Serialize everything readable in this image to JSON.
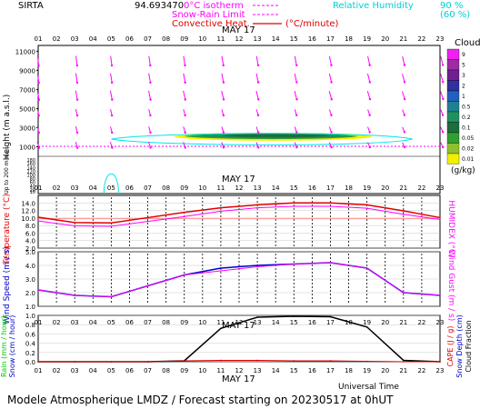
{
  "header": {
    "station": "SIRTA",
    "station_code": "94.693470",
    "legend_0c": "0°C isotherm",
    "legend_snow_rain": "Snow-Rain Limit",
    "legend_conv": "Convective Heat.",
    "legend_conv_unit": "(°C/minute)",
    "legend_rh": "Relative Humidity",
    "rh_90": "90 %",
    "rh_60": "(60 %)"
  },
  "footer": {
    "universal_time": "Universal Time",
    "date_label": "MAY 17",
    "title": "Modele Atmospherique LMDZ / Forecast starting on 20230517 at 0hUT"
  },
  "colors": {
    "magenta": "#ff00ff",
    "cyan": "#00e5e5",
    "red": "#e00000",
    "blue": "#0000cc",
    "green": "#00cc00",
    "black": "#000000"
  },
  "chart_data": [
    {
      "type": "heatmap",
      "name": "clouds",
      "hours": [
        "01",
        "02",
        "03",
        "04",
        "05",
        "06",
        "07",
        "08",
        "09",
        "10",
        "11",
        "12",
        "13",
        "14",
        "15",
        "16",
        "17",
        "18",
        "19",
        "20",
        "21",
        "22",
        "23"
      ],
      "day_label": "MAY 17",
      "y_title": "Height (m a.s.l.)",
      "y_title_low": "Up to 200 m a.s.l.",
      "y_ticks_upper": [
        "11000",
        "9000",
        "7000",
        "5000",
        "3000",
        "1000"
      ],
      "y_ticks_lower": [
        "180",
        "160",
        "140",
        "120",
        "100",
        "80",
        "60",
        "40",
        "20",
        "10"
      ],
      "colorbar_title": "Clouds",
      "colorbar_unit": "(g/kg)",
      "colorbar_ticks": [
        "9",
        "5",
        "3",
        "2",
        "1",
        "0.5",
        "0.2",
        "0.1",
        "0.05",
        "0.02",
        "0.01"
      ],
      "colorbar_colors": [
        "#f020f0",
        "#9c2ca0",
        "#702090",
        "#3030a0",
        "#2060c0",
        "#208090",
        "#209060",
        "#1c6e3c",
        "#30a030",
        "#90c030",
        "#f0f000"
      ],
      "cloud_layers": [
        {
          "h_start": 8.4,
          "h_end": 19.3,
          "alt_low": 1500,
          "alt_high": 2600,
          "level": 0.01
        },
        {
          "h_start": 9.0,
          "h_end": 18.5,
          "alt_low": 1700,
          "alt_high": 2500,
          "level": 0.05
        },
        {
          "h_start": 9.8,
          "h_end": 18.0,
          "alt_low": 1800,
          "alt_high": 2450,
          "level": 0.2
        },
        {
          "h_start": 11.0,
          "h_end": 17.0,
          "alt_low": 1900,
          "alt_high": 2400,
          "level": 0.5
        }
      ],
      "rh90_contours": [
        {
          "h_start": 5.0,
          "h_end": 21.5,
          "alt_low": 1100,
          "alt_high": 2500
        }
      ],
      "zero_isotherm_m": 1050
    },
    {
      "type": "line",
      "name": "temperature",
      "x": [
        1,
        3,
        5,
        7,
        9,
        11,
        13,
        15,
        17,
        19,
        21,
        23
      ],
      "ylabel": "Temperature (°C)",
      "ylabel_right": "HUMIDEX (°C)",
      "ylim": [
        2,
        16
      ],
      "y_ticks": [
        "14.0",
        "12.0",
        "10.0",
        "8.0",
        "6.0",
        "4.0",
        "2.0"
      ],
      "series": [
        {
          "name": "",
          "color": "#e00000",
          "values": [
            10.2,
            8.8,
            8.7,
            10.1,
            11.5,
            12.7,
            13.5,
            14.0,
            14.0,
            13.5,
            11.9,
            10.1
          ]
        },
        {
          "name": "",
          "color": "#ff00ff",
          "values": [
            9.2,
            7.9,
            7.8,
            9.1,
            10.4,
            11.8,
            12.7,
            13.1,
            13.1,
            12.6,
            11.0,
            9.6
          ]
        }
      ],
      "ref_line": 9.8
    },
    {
      "type": "line",
      "name": "wind",
      "x": [
        1,
        3,
        5,
        7,
        9,
        11,
        13,
        15,
        17,
        19,
        21,
        23
      ],
      "ylabel": "Wind Speed (m / s)",
      "ylabel_right": "Wind Gust (m / s)",
      "ylim": [
        1,
        5
      ],
      "y_ticks": [
        "5.0",
        "4.0",
        "3.0",
        "2.0",
        "1.0"
      ],
      "series": [
        {
          "name": "",
          "color": "#0000cc",
          "values": [
            2.2,
            1.8,
            1.7,
            2.5,
            3.3,
            3.8,
            4.0,
            4.1,
            4.2,
            3.8,
            2.0,
            1.8
          ]
        },
        {
          "name": "",
          "color": "#ff00ff",
          "values": [
            2.2,
            1.8,
            1.7,
            2.5,
            3.3,
            3.6,
            3.9,
            4.1,
            4.2,
            3.8,
            2.0,
            1.8
          ]
        }
      ]
    },
    {
      "type": "line",
      "name": "precip",
      "x": [
        1,
        3,
        5,
        7,
        9,
        11,
        13,
        15,
        17,
        19,
        21,
        23
      ],
      "day_label": "MAY 17",
      "ylabel_left1": "Rain (mm / hour)",
      "ylabel_left2": "Snow (cm / hour)",
      "ylabel_right1": "CAPE (J / g)",
      "ylabel_right2": "Snow Depth (cm)",
      "ylabel_right3": "Cloud Fraction",
      "ylim": [
        0,
        1
      ],
      "y_ticks": [
        "1.0",
        "0.8",
        "0.6",
        "0.4",
        "0.2",
        "0.0"
      ],
      "series": [
        {
          "name": "",
          "color": "#000000",
          "values": [
            0,
            0,
            0,
            0,
            0.02,
            0.72,
            0.96,
            0.98,
            0.97,
            0.75,
            0.03,
            0
          ]
        },
        {
          "name": "",
          "color": "#e00000",
          "values": [
            0,
            0,
            0,
            0,
            0.02,
            0.03,
            0.03,
            0.02,
            0.02,
            0.01,
            0,
            0
          ]
        }
      ]
    }
  ]
}
